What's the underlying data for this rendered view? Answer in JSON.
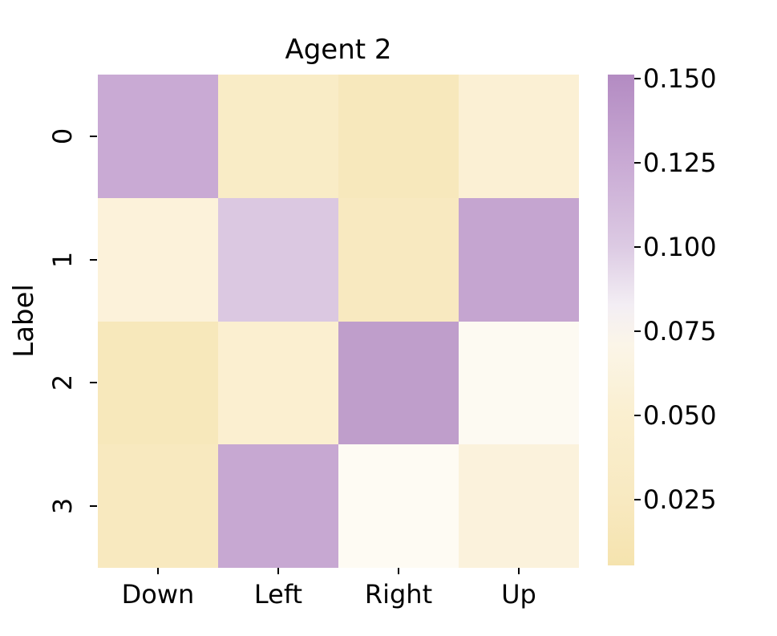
{
  "figure_title": "Agent 2",
  "colors": {
    "background": "#ffffff",
    "text": "#000000"
  },
  "chart_data": {
    "type": "heatmap",
    "title": "Agent 2",
    "xlabel": "",
    "ylabel": "Label",
    "x_categories": [
      "Down",
      "Left",
      "Right",
      "Up"
    ],
    "y_categories": [
      "0",
      "1",
      "2",
      "3"
    ],
    "values": [
      [
        0.128,
        0.033,
        0.024,
        0.048
      ],
      [
        0.055,
        0.11,
        0.028,
        0.133
      ],
      [
        0.022,
        0.043,
        0.142,
        0.08
      ],
      [
        0.027,
        0.13,
        0.078,
        0.058
      ]
    ],
    "cell_colors": [
      [
        "#c9aad4",
        "#f9ecc6",
        "#f7e8bc",
        "#fbf0d4"
      ],
      [
        "#fcf2da",
        "#dbc8e1",
        "#f8e9c0",
        "#c5a5d0"
      ],
      [
        "#f7e8bb",
        "#fbefd0",
        "#bf9ecb",
        "#fdfaf2"
      ],
      [
        "#f8e9bf",
        "#c7a8d2",
        "#fefbf3",
        "#fbf2dc"
      ]
    ],
    "colorbar": {
      "position": "right",
      "tick_labels": [
        "0.150",
        "0.125",
        "0.100",
        "0.075",
        "0.050",
        "0.025"
      ],
      "tick_values": [
        0.15,
        0.125,
        0.1,
        0.075,
        0.05,
        0.025
      ],
      "vmin": 0.0055,
      "vmax": 0.1512
    },
    "colormap_stops": [
      {
        "pos": 0.0,
        "color": "#b38bc2"
      },
      {
        "pos": 0.18,
        "color": "#c9aad4"
      },
      {
        "pos": 0.35,
        "color": "#dccae3"
      },
      {
        "pos": 0.47,
        "color": "#f3eef4"
      },
      {
        "pos": 0.55,
        "color": "#fbf5e8"
      },
      {
        "pos": 0.69,
        "color": "#faefd0"
      },
      {
        "pos": 0.87,
        "color": "#f8e9c0"
      },
      {
        "pos": 1.0,
        "color": "#f5e3ae"
      }
    ],
    "grid": false,
    "legend": false
  }
}
